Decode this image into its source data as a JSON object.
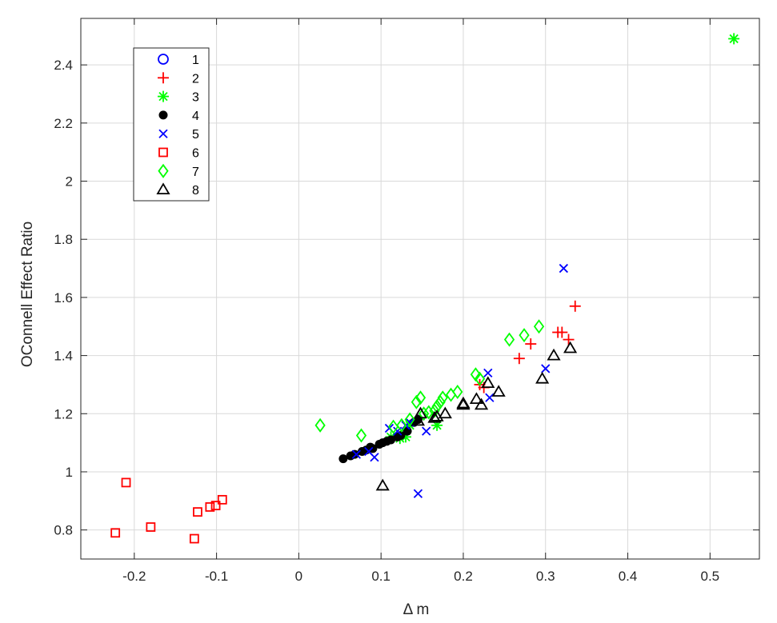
{
  "chart_data": {
    "type": "scatter",
    "title": "",
    "xlabel": "Δ m",
    "ylabel": "OConnell Effect Ratio",
    "xlim": [
      -0.265,
      0.56
    ],
    "ylim": [
      0.7,
      2.56
    ],
    "xticks": [
      -0.2,
      -0.1,
      0,
      0.1,
      0.2,
      0.3,
      0.4,
      0.5
    ],
    "xtick_labels": [
      "-0.2",
      "-0.1",
      "0",
      "0.1",
      "0.2",
      "0.3",
      "0.4",
      "0.5"
    ],
    "yticks": [
      0.8,
      1,
      1.2,
      1.4,
      1.6,
      1.8,
      2,
      2.2,
      2.4
    ],
    "ytick_labels": [
      "0.8",
      "1",
      "1.2",
      "1.4",
      "1.6",
      "1.8",
      "2",
      "2.2",
      "2.4"
    ],
    "grid": true,
    "legend_position": "top-left",
    "series": [
      {
        "name": "1",
        "marker": "circle-open",
        "color": "#0000ff",
        "points": []
      },
      {
        "name": "2",
        "marker": "plus",
        "color": "#ff0000",
        "points": [
          [
            0.22,
            1.3
          ],
          [
            0.225,
            1.29
          ],
          [
            0.268,
            1.39
          ],
          [
            0.282,
            1.44
          ],
          [
            0.315,
            1.48
          ],
          [
            0.32,
            1.48
          ],
          [
            0.328,
            1.455
          ],
          [
            0.336,
            1.57
          ]
        ]
      },
      {
        "name": "3",
        "marker": "asterisk",
        "color": "#00ff00",
        "points": [
          [
            0.112,
            1.12
          ],
          [
            0.123,
            1.115
          ],
          [
            0.13,
            1.12
          ],
          [
            0.135,
            1.16
          ],
          [
            0.168,
            1.16
          ],
          [
            0.529,
            2.49
          ]
        ]
      },
      {
        "name": "4",
        "marker": "dot",
        "color": "#000000",
        "points": [
          [
            0.054,
            1.045
          ],
          [
            0.063,
            1.055
          ],
          [
            0.068,
            1.06
          ],
          [
            0.077,
            1.07
          ],
          [
            0.082,
            1.075
          ],
          [
            0.087,
            1.085
          ],
          [
            0.09,
            1.08
          ],
          [
            0.098,
            1.095
          ],
          [
            0.102,
            1.1
          ],
          [
            0.107,
            1.105
          ],
          [
            0.112,
            1.11
          ],
          [
            0.12,
            1.12
          ],
          [
            0.124,
            1.125
          ],
          [
            0.132,
            1.14
          ],
          [
            0.14,
            1.17
          ],
          [
            0.145,
            1.18
          ]
        ]
      },
      {
        "name": "5",
        "marker": "x",
        "color": "#0000ff",
        "points": [
          [
            0.07,
            1.06
          ],
          [
            0.085,
            1.07
          ],
          [
            0.092,
            1.05
          ],
          [
            0.11,
            1.15
          ],
          [
            0.12,
            1.14
          ],
          [
            0.13,
            1.16
          ],
          [
            0.135,
            1.17
          ],
          [
            0.145,
            0.925
          ],
          [
            0.155,
            1.14
          ],
          [
            0.23,
            1.34
          ],
          [
            0.232,
            1.255
          ],
          [
            0.3,
            1.355
          ],
          [
            0.322,
            1.7
          ]
        ]
      },
      {
        "name": "6",
        "marker": "square-open",
        "color": "#ff0000",
        "points": [
          [
            -0.223,
            0.79
          ],
          [
            -0.21,
            0.963
          ],
          [
            -0.18,
            0.81
          ],
          [
            -0.127,
            0.77
          ],
          [
            -0.123,
            0.862
          ],
          [
            -0.108,
            0.879
          ],
          [
            -0.101,
            0.884
          ],
          [
            -0.093,
            0.904
          ]
        ]
      },
      {
        "name": "7",
        "marker": "diamond-open",
        "color": "#00ff00",
        "points": [
          [
            0.026,
            1.16
          ],
          [
            0.076,
            1.125
          ],
          [
            0.115,
            1.155
          ],
          [
            0.125,
            1.16
          ],
          [
            0.135,
            1.18
          ],
          [
            0.143,
            1.24
          ],
          [
            0.148,
            1.255
          ],
          [
            0.152,
            1.2
          ],
          [
            0.158,
            1.205
          ],
          [
            0.165,
            1.21
          ],
          [
            0.168,
            1.225
          ],
          [
            0.172,
            1.24
          ],
          [
            0.175,
            1.255
          ],
          [
            0.185,
            1.265
          ],
          [
            0.193,
            1.275
          ],
          [
            0.215,
            1.335
          ],
          [
            0.22,
            1.32
          ],
          [
            0.256,
            1.455
          ],
          [
            0.274,
            1.47
          ],
          [
            0.292,
            1.5
          ]
        ]
      },
      {
        "name": "8",
        "marker": "triangle-open",
        "color": "#000000",
        "points": [
          [
            0.102,
            0.952
          ],
          [
            0.145,
            1.175
          ],
          [
            0.148,
            1.2
          ],
          [
            0.165,
            1.185
          ],
          [
            0.168,
            1.19
          ],
          [
            0.178,
            1.2
          ],
          [
            0.2,
            1.23
          ],
          [
            0.2,
            1.235
          ],
          [
            0.216,
            1.25
          ],
          [
            0.222,
            1.23
          ],
          [
            0.23,
            1.305
          ],
          [
            0.243,
            1.275
          ],
          [
            0.296,
            1.32
          ],
          [
            0.31,
            1.4
          ],
          [
            0.33,
            1.425
          ]
        ]
      }
    ]
  }
}
